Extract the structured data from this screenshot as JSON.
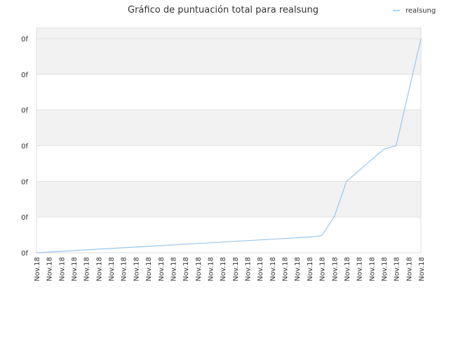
{
  "chart_data": {
    "type": "line",
    "title": "Gráfico de puntuación total para realsung",
    "xlabel": "",
    "ylabel": "",
    "x": [
      "Nov.18",
      "Nov.18",
      "Nov.18",
      "Nov.18",
      "Nov.18",
      "Nov.18",
      "Nov.18",
      "Nov.18",
      "Nov.18",
      "Nov.18",
      "Nov.18",
      "Nov.18",
      "Nov.18",
      "Nov.18",
      "Nov.18",
      "Nov.18",
      "Nov.18",
      "Nov.18",
      "Nov.18",
      "Nov.18",
      "Nov.18",
      "Nov.18",
      "Nov.18",
      "Nov.18",
      "Nov.18",
      "Nov.18",
      "Nov.18",
      "Nov.18",
      "Nov.18",
      "Nov.18",
      "Nov.18",
      "Nov.18"
    ],
    "y_tick_labels": [
      "0f",
      "0f",
      "0f",
      "0f",
      "0f",
      "0f",
      "0f"
    ],
    "ylim": [
      0,
      6
    ],
    "series": [
      {
        "name": "realsung",
        "color": "#99c7f0",
        "values": [
          0.0,
          0.02,
          0.04,
          0.06,
          0.08,
          0.1,
          0.12,
          0.14,
          0.16,
          0.18,
          0.2,
          0.22,
          0.24,
          0.26,
          0.28,
          0.3,
          0.32,
          0.34,
          0.36,
          0.38,
          0.4,
          0.42,
          0.44,
          0.48,
          1.0,
          2.0,
          2.3,
          2.6,
          2.9,
          3.0,
          4.5,
          6.0
        ]
      }
    ],
    "grid": true,
    "legend_position": "top-right",
    "band_colors": [
      "#f2f2f2",
      "#ffffff"
    ]
  }
}
